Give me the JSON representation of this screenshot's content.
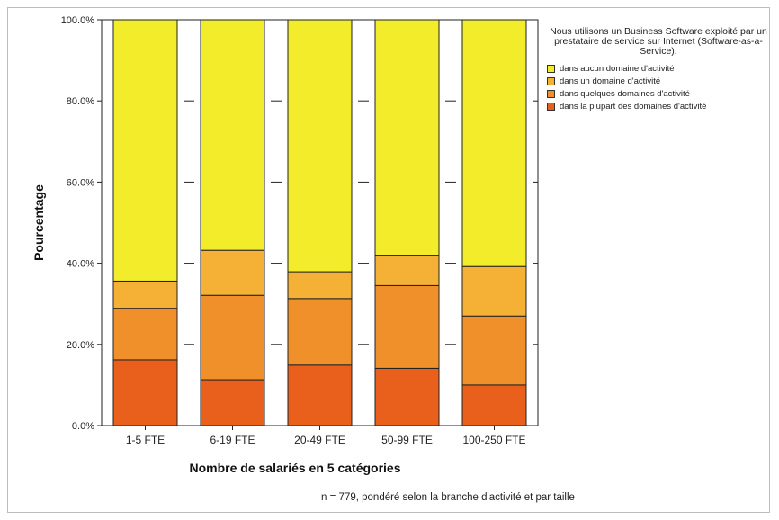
{
  "chart_data": {
    "type": "bar",
    "stacked": true,
    "categories": [
      "1-5 FTE",
      "6-19 FTE",
      "20-49 FTE",
      "50-99 FTE",
      "100-250 FTE"
    ],
    "series": [
      {
        "name": "dans la plupart des domaines d'activité",
        "color": "#e8601c",
        "values": [
          16.2,
          11.3,
          14.9,
          14.1,
          10.0
        ]
      },
      {
        "name": "dans quelques domaines d'activité",
        "color": "#f0902a",
        "values": [
          12.7,
          20.8,
          16.4,
          20.4,
          17.0
        ]
      },
      {
        "name": "dans un domaine d'activité",
        "color": "#f5b135",
        "values": [
          6.7,
          11.1,
          6.6,
          7.5,
          12.2
        ]
      },
      {
        "name": "dans aucun domaine d'activité",
        "color": "#f3ec2b",
        "values": [
          64.4,
          56.8,
          62.1,
          58.0,
          60.8
        ]
      }
    ],
    "ylabel": "Pourcentage",
    "xlabel": "Nombre de salariés en 5 catégories",
    "ylim": [
      0,
      100
    ],
    "yticks": [
      "0.0%",
      "20.0%",
      "40.0%",
      "60.0%",
      "80.0%",
      "100.0%"
    ],
    "legend_title": "Nous utilisons un Business Software exploité par un prestataire de service sur Internet (Software-as-a-Service).",
    "legend_position": "top-right",
    "footnote": "n = 779, pondéré selon la branche d'activité et par taille"
  }
}
